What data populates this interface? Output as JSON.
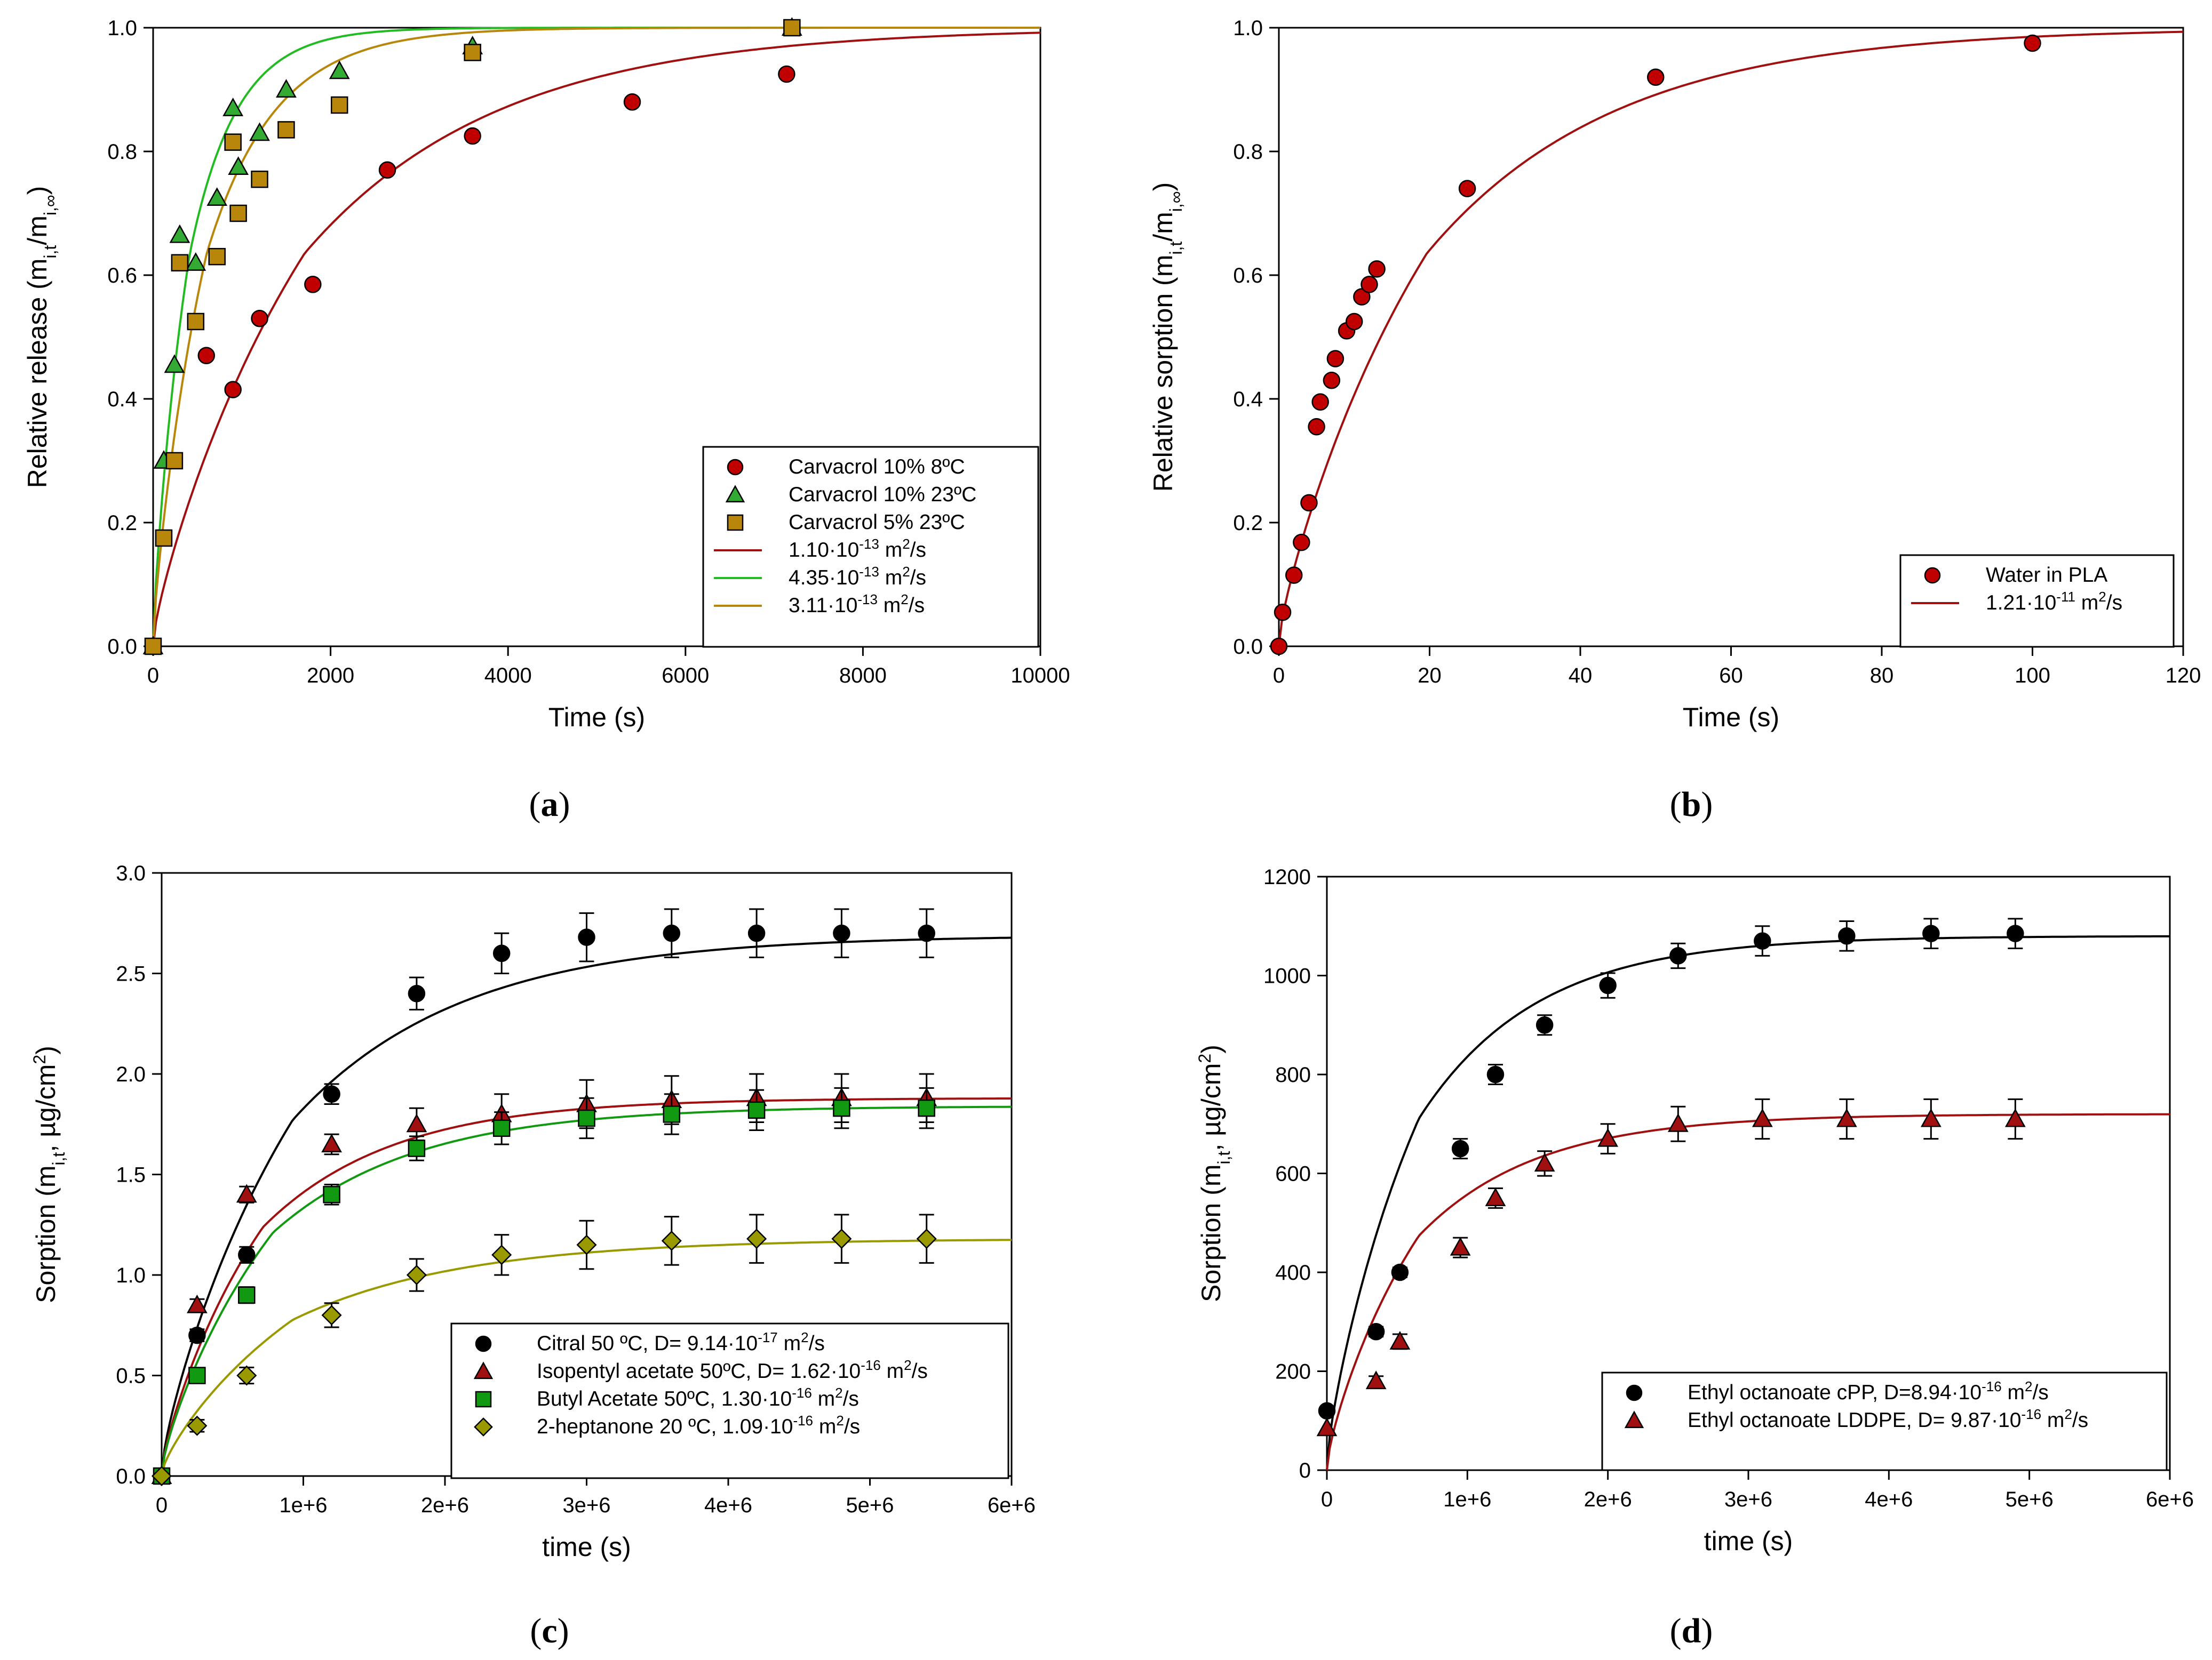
{
  "panels": [
    {
      "id": "a",
      "label": "a"
    },
    {
      "id": "b",
      "label": "b"
    },
    {
      "id": "c",
      "label": "c"
    },
    {
      "id": "d",
      "label": "d"
    }
  ],
  "chart_data": [
    {
      "panel": "a",
      "type": "scatter",
      "xlabel": "Time (s)",
      "ylabel": "Relative release (m",
      "ylabel_sub": "i,t",
      "ylabel_mid": "/m",
      "ylabel_sub2": "i,∞",
      "ylabel_end": ")",
      "xlim": [
        0,
        10000
      ],
      "ylim": [
        0,
        1.0
      ],
      "xticks": [
        0,
        2000,
        4000,
        6000,
        8000,
        10000
      ],
      "xtick_labels": [
        "0",
        "2000",
        "4000",
        "6000",
        "8000",
        "10000"
      ],
      "yticks": [
        0,
        0.2,
        0.4,
        0.6,
        0.8,
        1.0
      ],
      "ytick_labels": [
        "0.0",
        "0.2",
        "0.4",
        "0.6",
        "0.8",
        "1.0"
      ],
      "legend_position": "bottom-right",
      "series": [
        {
          "name": "Carvacrol 10% 8ºC",
          "marker": "circle",
          "color": "#c00000",
          "x": [
            0,
            600,
            900,
            1200,
            1800,
            2640,
            3600,
            5400,
            7140
          ],
          "y": [
            0.0,
            0.47,
            0.415,
            0.53,
            0.585,
            0.77,
            0.825,
            0.88,
            0.925
          ]
        },
        {
          "name": "Carvacrol 10% 23ºC",
          "marker": "triangle",
          "color": "#33aa33",
          "x": [
            0,
            120,
            240,
            300,
            480,
            720,
            900,
            960,
            1200,
            1500,
            2100,
            3600,
            7200
          ],
          "y": [
            0.0,
            0.3,
            0.455,
            0.665,
            0.62,
            0.725,
            0.87,
            0.775,
            0.83,
            0.9,
            0.93,
            0.97,
            1.0
          ]
        },
        {
          "name": "Carvacrol 5% 23ºC",
          "marker": "square",
          "color": "#b8860b",
          "x": [
            0,
            120,
            240,
            300,
            480,
            720,
            900,
            960,
            1200,
            1500,
            2100,
            3600,
            7200
          ],
          "y": [
            0.0,
            0.175,
            0.3,
            0.62,
            0.525,
            0.63,
            0.815,
            0.7,
            0.755,
            0.835,
            0.875,
            0.96,
            1.0
          ]
        }
      ],
      "fits": [
        {
          "label": "1.10·10",
          "exp": "-13",
          "unit": " m",
          "unit_exp": "2",
          "unit_end": "/s",
          "color": "#a01010",
          "model": "diff",
          "k": 0.00046
        },
        {
          "label": "4.35·10",
          "exp": "-13",
          "unit": " m",
          "unit_exp": "2",
          "unit_end": "/s",
          "color": "#22bb22",
          "model": "diff",
          "k": 0.0019
        },
        {
          "label": "3.11·10",
          "exp": "-13",
          "unit": " m",
          "unit_exp": "2",
          "unit_end": "/s",
          "color": "#b8860b",
          "model": "diff",
          "k": 0.0013
        }
      ]
    },
    {
      "panel": "b",
      "type": "scatter",
      "xlabel": "Time (s)",
      "ylabel": "Relative sorption (m",
      "ylabel_sub": "i,t",
      "ylabel_mid": "/m",
      "ylabel_sub2": "i,∞",
      "ylabel_end": ")",
      "xlim": [
        0,
        120
      ],
      "ylim": [
        0,
        1.0
      ],
      "xticks": [
        0,
        20,
        40,
        60,
        80,
        100,
        120
      ],
      "xtick_labels": [
        "0",
        "20",
        "40",
        "60",
        "80",
        "100",
        "120"
      ],
      "yticks": [
        0,
        0.2,
        0.4,
        0.6,
        0.8,
        1.0
      ],
      "ytick_labels": [
        "0.0",
        "0.2",
        "0.4",
        "0.6",
        "0.8",
        "1.0"
      ],
      "legend_position": "bottom-right",
      "series": [
        {
          "name": "Water in PLA",
          "marker": "circle",
          "color": "#c00000",
          "x": [
            0,
            0.5,
            2,
            3,
            4,
            5,
            5.5,
            7,
            7.5,
            9,
            10,
            11,
            12,
            13,
            25,
            50,
            100
          ],
          "y": [
            0.0,
            0.055,
            0.115,
            0.168,
            0.232,
            0.355,
            0.395,
            0.43,
            0.465,
            0.51,
            0.525,
            0.565,
            0.585,
            0.61,
            0.74,
            0.92,
            0.975
          ]
        }
      ],
      "fits": [
        {
          "label": "1.21·10",
          "exp": "-11",
          "unit": " m",
          "unit_exp": "2",
          "unit_end": "/s",
          "color": "#a01010",
          "model": "diff",
          "k": 0.04
        }
      ]
    },
    {
      "panel": "c",
      "type": "scatter",
      "xlabel": "time (s)",
      "ylabel": "Sorption (m",
      "ylabel_sub": "i,t",
      "ylabel_mid": ", µg/cm",
      "ylabel_sup": "2",
      "ylabel_end": ")",
      "xlim": [
        0,
        6000000
      ],
      "ylim": [
        0,
        3.0
      ],
      "xticks": [
        0,
        1000000,
        2000000,
        3000000,
        4000000,
        5000000,
        6000000
      ],
      "xtick_labels": [
        "0",
        "1e+6",
        "2e+6",
        "3e+6",
        "4e+6",
        "5e+6",
        "6e+6"
      ],
      "yticks": [
        0,
        0.5,
        1.0,
        1.5,
        2.0,
        2.5,
        3.0
      ],
      "ytick_labels": [
        "0.0",
        "0.5",
        "1.0",
        "1.5",
        "2.0",
        "2.5",
        "3.0"
      ],
      "legend_position": "bottom-right",
      "series": [
        {
          "name": "Citral 50 ºC, D= 9.14·10",
          "exp": "-17",
          "unit": " m",
          "unit_exp": "2",
          "unit_end": "/s",
          "marker": "circle",
          "color": "#000000",
          "x": [
            0,
            250000,
            600000,
            1200000,
            1800000,
            2400000,
            3000000,
            3600000,
            4200000,
            4800000,
            5400000
          ],
          "y": [
            0.0,
            0.7,
            1.1,
            1.9,
            2.4,
            2.6,
            2.68,
            2.7,
            2.7,
            2.7,
            2.7
          ],
          "err": [
            0.0,
            0.03,
            0.04,
            0.05,
            0.08,
            0.1,
            0.12,
            0.12,
            0.12,
            0.12,
            0.12
          ],
          "fit": {
            "model": "exp",
            "A": 2.69,
            "k": 8.5e-07,
            "color": "#000000"
          }
        },
        {
          "name": "Isopentyl acetate 50ºC, D= 1.62·10",
          "exp": "-16",
          "unit": " m",
          "unit_exp": "2",
          "unit_end": "/s",
          "marker": "triangle",
          "color": "#a01010",
          "x": [
            0,
            250000,
            600000,
            1200000,
            1800000,
            2400000,
            3000000,
            3600000,
            4200000,
            4800000,
            5400000
          ],
          "y": [
            0.0,
            0.85,
            1.4,
            1.65,
            1.75,
            1.8,
            1.85,
            1.87,
            1.88,
            1.88,
            1.88
          ],
          "err": [
            0.0,
            0.03,
            0.04,
            0.05,
            0.08,
            0.1,
            0.12,
            0.12,
            0.12,
            0.12,
            0.12
          ],
          "fit": {
            "model": "exp",
            "A": 1.88,
            "k": 1.1e-06,
            "color": "#a01010"
          }
        },
        {
          "name": "Butyl Acetate 50ºC, 1.30·10",
          "exp": "-16",
          "unit": " m",
          "unit_exp": "2",
          "unit_end": "/s",
          "marker": "square",
          "color": "#119911",
          "x": [
            0,
            250000,
            600000,
            1200000,
            1800000,
            2400000,
            3000000,
            3600000,
            4200000,
            4800000,
            5400000
          ],
          "y": [
            0.0,
            0.5,
            0.9,
            1.4,
            1.63,
            1.73,
            1.78,
            1.8,
            1.82,
            1.83,
            1.83
          ],
          "err": [
            0.0,
            0.03,
            0.04,
            0.05,
            0.06,
            0.08,
            0.1,
            0.1,
            0.1,
            0.1,
            0.1
          ],
          "fit": {
            "model": "exp",
            "A": 1.84,
            "k": 1e-06,
            "color": "#119911"
          }
        },
        {
          "name": "2-heptanone 20 ºC, 1.09·10",
          "exp": "-16",
          "unit": " m",
          "unit_exp": "2",
          "unit_end": "/s",
          "marker": "diamond",
          "color": "#999900",
          "x": [
            0,
            250000,
            600000,
            1200000,
            1800000,
            2400000,
            3000000,
            3600000,
            4200000,
            4800000,
            5400000
          ],
          "y": [
            0.0,
            0.25,
            0.5,
            0.8,
            1.0,
            1.1,
            1.15,
            1.17,
            1.18,
            1.18,
            1.18
          ],
          "err": [
            0.0,
            0.03,
            0.04,
            0.06,
            0.08,
            0.1,
            0.12,
            0.12,
            0.12,
            0.12,
            0.12
          ],
          "fit": {
            "model": "exp",
            "A": 1.18,
            "k": 8.5e-07,
            "color": "#999900"
          }
        }
      ]
    },
    {
      "panel": "d",
      "type": "scatter",
      "xlabel": "time (s)",
      "ylabel": "Sorption (m",
      "ylabel_sub": "i,t",
      "ylabel_mid": ", µg/cm",
      "ylabel_sup": "2",
      "ylabel_end": ")",
      "xlim": [
        0,
        6000000
      ],
      "ylim": [
        0,
        1200
      ],
      "xticks": [
        0,
        1000000,
        2000000,
        3000000,
        4000000,
        5000000,
        6000000
      ],
      "xtick_labels": [
        "0",
        "1e+6",
        "2e+6",
        "3e+6",
        "4e+6",
        "5e+6",
        "6e+6"
      ],
      "yticks": [
        0,
        200,
        400,
        600,
        800,
        1000,
        1200
      ],
      "ytick_labels": [
        "0",
        "200",
        "400",
        "600",
        "800",
        "1000",
        "1200"
      ],
      "legend_position": "bottom-right",
      "series": [
        {
          "name": "Ethyl octanoate cPP, D=8.94·10",
          "exp": "-16",
          "unit": " m",
          "unit_exp": "2",
          "unit_end": "/s",
          "marker": "circle",
          "color": "#000000",
          "x": [
            0,
            350000,
            520000,
            950000,
            1200000,
            1550000,
            2000000,
            2500000,
            3100000,
            3700000,
            4300000,
            4900000
          ],
          "y": [
            120,
            280,
            400,
            650,
            800,
            900,
            980,
            1040,
            1070,
            1080,
            1085,
            1085
          ],
          "err": [
            0,
            10,
            10,
            20,
            20,
            20,
            25,
            25,
            30,
            30,
            30,
            30
          ],
          "fit": {
            "model": "exp",
            "A": 1080,
            "k": 1.2e-06,
            "color": "#000000"
          }
        },
        {
          "name": "Ethyl octanoate LDDPE, D= 9.87·10",
          "exp": "-16",
          "unit": " m",
          "unit_exp": "2",
          "unit_end": "/s",
          "marker": "triangle",
          "color": "#a01010",
          "x": [
            0,
            350000,
            520000,
            950000,
            1200000,
            1550000,
            2000000,
            2500000,
            3100000,
            3700000,
            4300000,
            4900000
          ],
          "y": [
            85,
            180,
            260,
            450,
            550,
            620,
            670,
            700,
            710,
            710,
            710,
            710
          ],
          "err": [
            0,
            10,
            15,
            20,
            20,
            25,
            30,
            35,
            40,
            40,
            40,
            40
          ],
          "fit": {
            "model": "exp",
            "A": 720,
            "k": 1.2e-06,
            "color": "#a01010"
          }
        }
      ]
    }
  ]
}
